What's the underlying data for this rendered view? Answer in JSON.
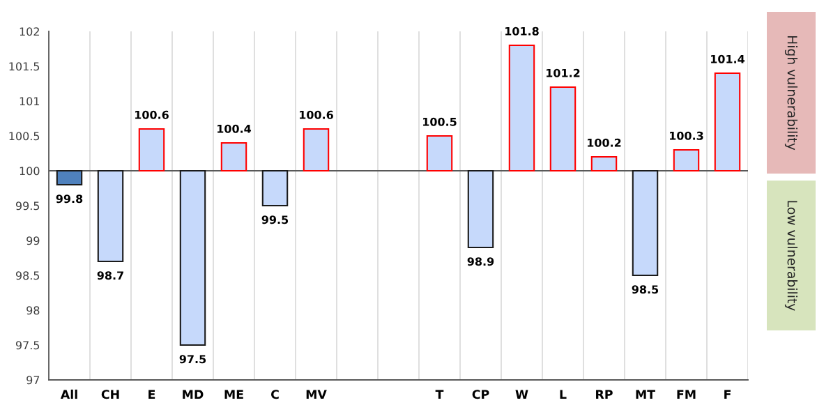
{
  "chart_data": {
    "type": "bar",
    "categories": [
      "All",
      "CH",
      "E",
      "MD",
      "ME",
      "C",
      "MV",
      null,
      null,
      "T",
      "CP",
      "W",
      "L",
      "RP",
      "MT",
      "FM",
      "F"
    ],
    "base": [
      100,
      100,
      100,
      100,
      100,
      100,
      100,
      null,
      null,
      100,
      100,
      100,
      100,
      100,
      100,
      100,
      100
    ],
    "values": [
      -0.2,
      -1.3,
      0.6,
      -2.5,
      0.4,
      -0.5,
      0.6,
      null,
      null,
      0.5,
      -1.1,
      1.8,
      1.2,
      0.2,
      -1.5,
      0.3,
      1.4
    ],
    "value_labels": [
      "99.8",
      "98.7",
      "100.6",
      "97.5",
      "100.4",
      "99.5",
      "100.6",
      null,
      null,
      "100.5",
      "98.9",
      "101.8",
      "101.2",
      "100.2",
      "98.5",
      "100.3",
      "101.4"
    ],
    "colors": [
      "#4f81bd",
      "#c6d9fb",
      "#c6d9fb",
      "#c6d9fb",
      "#c6d9fb",
      "#c6d9fb",
      "#c6d9fb",
      "#c6d9fb",
      "#c6d9fb",
      "#c6d9fb",
      "#c6d9fb",
      "#c6d9fb",
      "#c6d9fb",
      "#c6d9fb",
      "#c6d9fb",
      "#c6d9fb",
      "#c6d9fb"
    ],
    "ylim": [
      97,
      102
    ],
    "yticks": [
      97,
      97.5,
      98,
      98.5,
      99,
      99.5,
      100,
      100.5,
      101,
      101.5,
      102
    ],
    "ref_lines": [
      {
        "axis": "y",
        "value": 100,
        "color": "#595959"
      }
    ],
    "grid": "x",
    "annotations": [
      "High vulnerability",
      "Low vulnerability"
    ]
  }
}
